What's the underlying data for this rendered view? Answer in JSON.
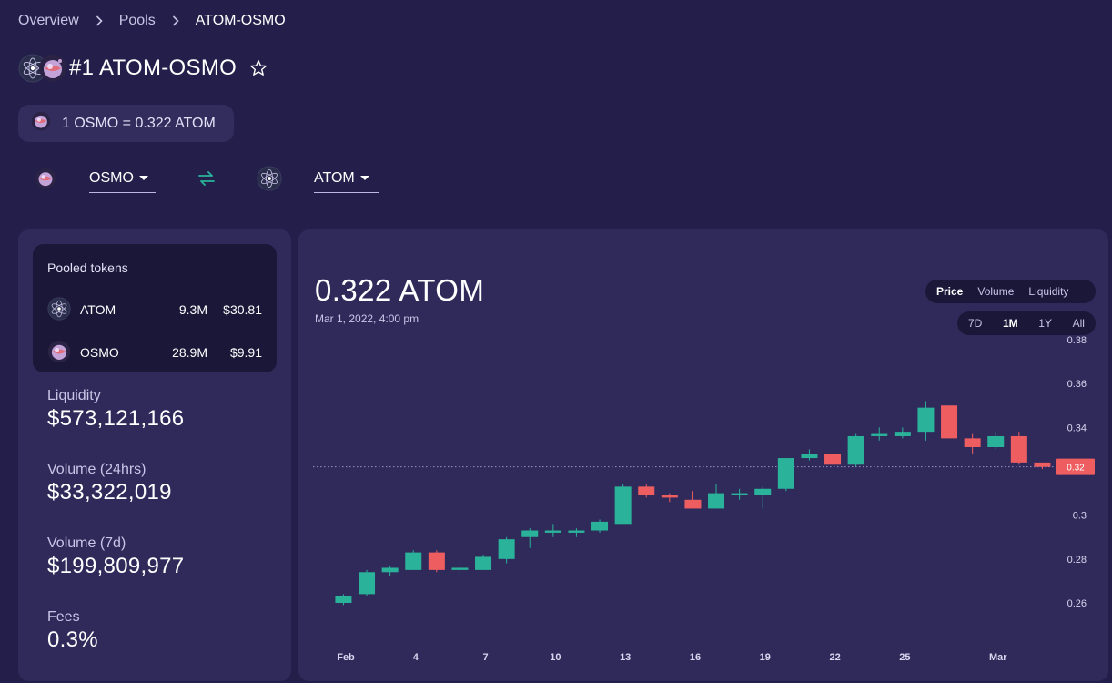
{
  "breadcrumb": {
    "items": [
      "Overview",
      "Pools"
    ],
    "current": "ATOM-OSMO"
  },
  "pool": {
    "title": "#1 ATOM-OSMO",
    "rate": "1 OSMO = 0.322 ATOM"
  },
  "selectors": {
    "from": "OSMO",
    "to": "ATOM"
  },
  "pooled_tokens": {
    "title": "Pooled tokens",
    "rows": [
      {
        "symbol": "ATOM",
        "amount": "9.3M",
        "price": "$30.81",
        "icon": "atom-icon"
      },
      {
        "symbol": "OSMO",
        "amount": "28.9M",
        "price": "$9.91",
        "icon": "osmo-icon"
      }
    ]
  },
  "stats": [
    {
      "label": "Liquidity",
      "value": "$573,121,166"
    },
    {
      "label": "Volume (24hrs)",
      "value": "$33,322,019"
    },
    {
      "label": "Volume (7d)",
      "value": "$199,809,977"
    },
    {
      "label": "Fees",
      "value": "0.3%"
    }
  ],
  "price_header": {
    "value": "0.322 ATOM",
    "date": "Mar 1, 2022, 4:00 pm"
  },
  "chart_tabs": [
    "Price",
    "Volume",
    "Liquidity"
  ],
  "active_chart_tab": "Price",
  "range_tabs": [
    "7D",
    "1M",
    "1Y",
    "All"
  ],
  "active_range_tab": "1M",
  "colors": {
    "up": "#2ab39a",
    "down": "#ee5e61",
    "background": "#231f4a",
    "card": "#2f2a5a",
    "dark_box": "#1b1738"
  },
  "chart_data": {
    "type": "candlestick",
    "title": "",
    "xlabel": "",
    "ylabel": "",
    "ylim": [
      0.25,
      0.38
    ],
    "y_ticks": [
      "0.38",
      "0.36",
      "0.34",
      "0.32",
      "0.3",
      "0.28",
      "0.26"
    ],
    "x_ticks": [
      {
        "label": "Feb",
        "day": 1
      },
      {
        "label": "4",
        "day": 4
      },
      {
        "label": "7",
        "day": 7
      },
      {
        "label": "10",
        "day": 10
      },
      {
        "label": "13",
        "day": 13
      },
      {
        "label": "16",
        "day": 16
      },
      {
        "label": "19",
        "day": 19
      },
      {
        "label": "22",
        "day": 22
      },
      {
        "label": "25",
        "day": 25
      },
      {
        "label": "Mar",
        "day": 29
      }
    ],
    "current_price_label": "0.32",
    "current_price": 0.322,
    "candles": [
      {
        "day": 0.9,
        "open": 0.26,
        "close": 0.263,
        "high": 0.264,
        "low": 0.259
      },
      {
        "day": 1.9,
        "open": 0.264,
        "close": 0.274,
        "high": 0.275,
        "low": 0.263
      },
      {
        "day": 2.9,
        "open": 0.274,
        "close": 0.276,
        "high": 0.277,
        "low": 0.272
      },
      {
        "day": 3.9,
        "open": 0.275,
        "close": 0.283,
        "high": 0.284,
        "low": 0.275
      },
      {
        "day": 4.9,
        "open": 0.283,
        "close": 0.275,
        "high": 0.284,
        "low": 0.274
      },
      {
        "day": 5.9,
        "open": 0.275,
        "close": 0.276,
        "high": 0.278,
        "low": 0.272
      },
      {
        "day": 6.9,
        "open": 0.275,
        "close": 0.281,
        "high": 0.282,
        "low": 0.275
      },
      {
        "day": 7.9,
        "open": 0.28,
        "close": 0.289,
        "high": 0.29,
        "low": 0.278
      },
      {
        "day": 8.9,
        "open": 0.29,
        "close": 0.293,
        "high": 0.294,
        "low": 0.285
      },
      {
        "day": 9.9,
        "open": 0.292,
        "close": 0.293,
        "high": 0.296,
        "low": 0.29
      },
      {
        "day": 10.9,
        "open": 0.292,
        "close": 0.293,
        "high": 0.294,
        "low": 0.29
      },
      {
        "day": 11.9,
        "open": 0.293,
        "close": 0.297,
        "high": 0.298,
        "low": 0.292
      },
      {
        "day": 12.9,
        "open": 0.296,
        "close": 0.313,
        "high": 0.314,
        "low": 0.296
      },
      {
        "day": 13.9,
        "open": 0.313,
        "close": 0.309,
        "high": 0.314,
        "low": 0.308
      },
      {
        "day": 14.9,
        "open": 0.309,
        "close": 0.308,
        "high": 0.31,
        "low": 0.306
      },
      {
        "day": 15.9,
        "open": 0.307,
        "close": 0.303,
        "high": 0.311,
        "low": 0.303
      },
      {
        "day": 16.9,
        "open": 0.303,
        "close": 0.31,
        "high": 0.314,
        "low": 0.303
      },
      {
        "day": 17.9,
        "open": 0.309,
        "close": 0.31,
        "high": 0.312,
        "low": 0.307
      },
      {
        "day": 18.9,
        "open": 0.309,
        "close": 0.312,
        "high": 0.313,
        "low": 0.303
      },
      {
        "day": 19.9,
        "open": 0.312,
        "close": 0.326,
        "high": 0.326,
        "low": 0.311
      },
      {
        "day": 20.9,
        "open": 0.326,
        "close": 0.328,
        "high": 0.33,
        "low": 0.325
      },
      {
        "day": 21.9,
        "open": 0.328,
        "close": 0.323,
        "high": 0.328,
        "low": 0.323
      },
      {
        "day": 22.9,
        "open": 0.323,
        "close": 0.336,
        "high": 0.337,
        "low": 0.322
      },
      {
        "day": 23.9,
        "open": 0.336,
        "close": 0.337,
        "high": 0.34,
        "low": 0.334
      },
      {
        "day": 24.9,
        "open": 0.336,
        "close": 0.338,
        "high": 0.34,
        "low": 0.335
      },
      {
        "day": 25.9,
        "open": 0.338,
        "close": 0.349,
        "high": 0.352,
        "low": 0.334
      },
      {
        "day": 26.9,
        "open": 0.35,
        "close": 0.335,
        "high": 0.35,
        "low": 0.335
      },
      {
        "day": 27.9,
        "open": 0.335,
        "close": 0.331,
        "high": 0.337,
        "low": 0.328
      },
      {
        "day": 28.9,
        "open": 0.331,
        "close": 0.336,
        "high": 0.338,
        "low": 0.33
      },
      {
        "day": 29.9,
        "open": 0.336,
        "close": 0.324,
        "high": 0.338,
        "low": 0.323
      },
      {
        "day": 30.9,
        "open": 0.324,
        "close": 0.322,
        "high": 0.324,
        "low": 0.321
      }
    ]
  }
}
